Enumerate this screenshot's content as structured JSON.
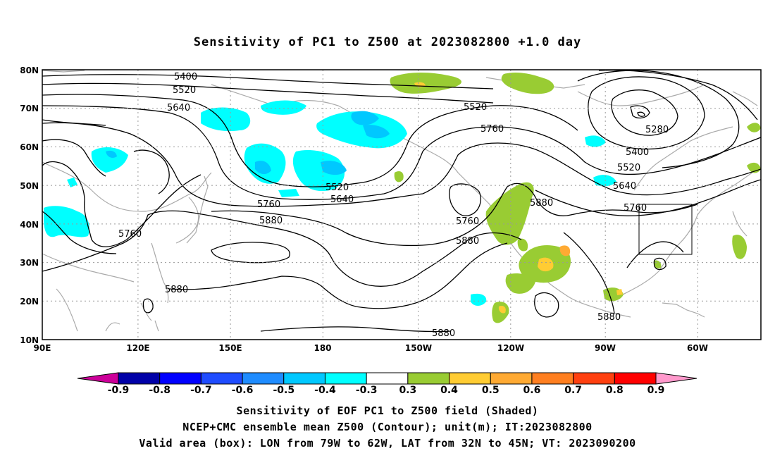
{
  "title": "Sensitivity of PC1 to Z500 at 2023082800 +1.0 day",
  "lat_labels": [
    "80N",
    "70N",
    "60N",
    "50N",
    "40N",
    "30N",
    "20N",
    "10N"
  ],
  "lon_labels": [
    "90E",
    "120E",
    "150E",
    "180",
    "150W",
    "120W",
    "90W",
    "60W"
  ],
  "contour_labels": [
    "5400",
    "5520",
    "5640",
    "5520",
    "5760",
    "5280",
    "5400",
    "5520",
    "5640",
    "5760",
    "5520",
    "5640",
    "5760",
    "5760",
    "5880",
    "5760",
    "5880",
    "5880",
    "5880",
    "5880",
    "5880"
  ],
  "colorbar": {
    "labels": [
      "-0.9",
      "-0.8",
      "-0.7",
      "-0.6",
      "-0.5",
      "-0.4",
      "-0.3",
      "0.3",
      "0.4",
      "0.5",
      "0.6",
      "0.7",
      "0.8",
      "0.9"
    ],
    "colors": [
      "#0000a8",
      "#0000ff",
      "#1f4cff",
      "#1f8cff",
      "#00c8ff",
      "#00ffff",
      "#ffffff",
      "#99cc33",
      "#ffcc33",
      "#ffaa33",
      "#ff7f20",
      "#ff4010",
      "#ff0000"
    ],
    "low_end_color": "#cc0099",
    "high_end_color": "#ff99cc"
  },
  "captions": [
    "Sensitivity of EOF PC1 to Z500 field (Shaded)",
    "NCEP+CMC ensemble mean Z500 (Contour); unit(m); IT:2023082800",
    "Valid area (box): LON from 79W to 62W, LAT from 32N to 45N; VT: 2023090200"
  ]
}
